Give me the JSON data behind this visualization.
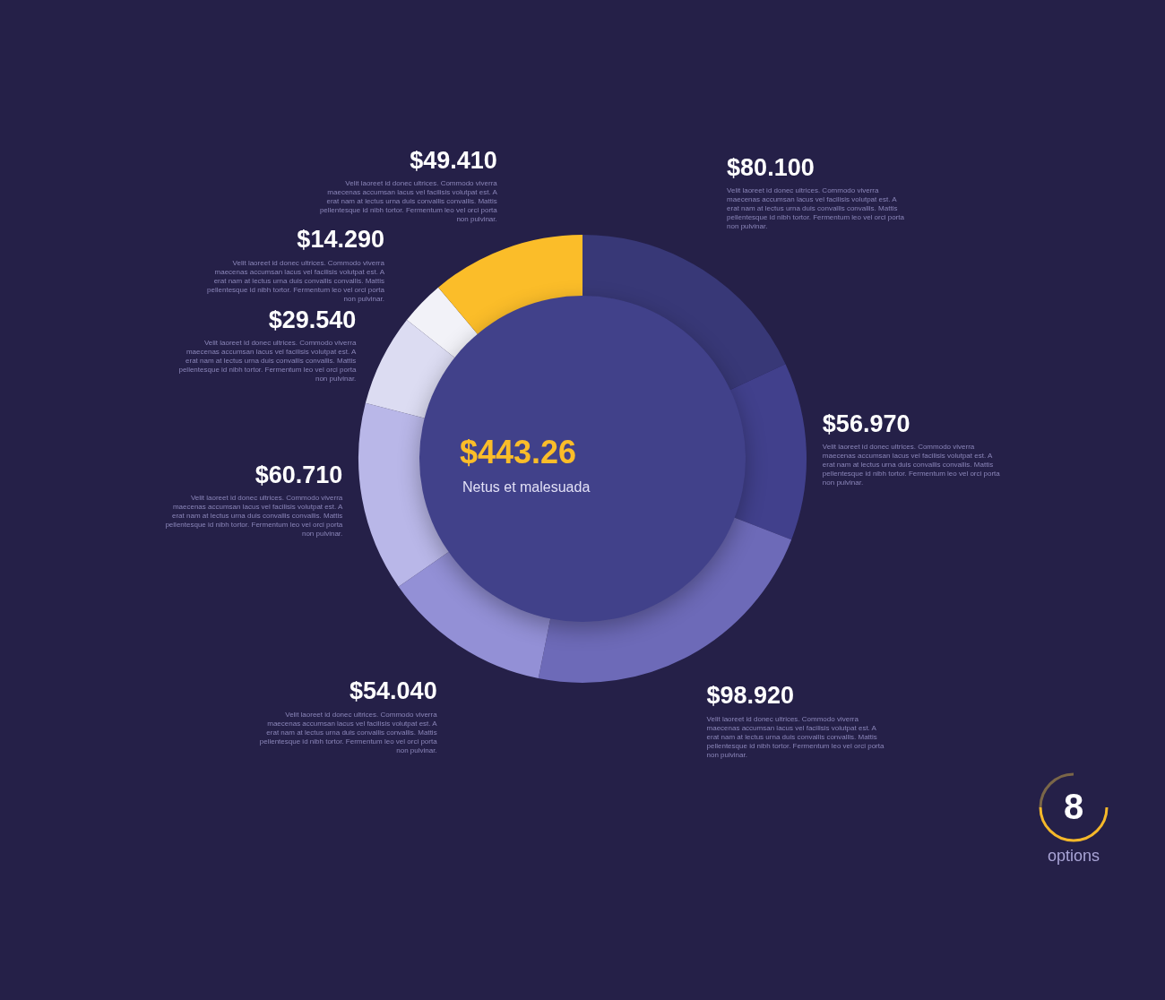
{
  "chart_data": {
    "type": "donut",
    "categories": [
      "Velit laoreet id donec ultrices. Commodo viverra maecenas accumsan lacus vel facilisis volutpat est. A erat nam at lectus urna duis convallis convallis. Mattis pellentesque id nibh tortor. Fermentum leo vel orci porta non pulvinar.",
      "Velit laoreet id donec ultrices. Commodo viverra maecenas accumsan lacus vel facilisis volutpat est. A erat nam at lectus urna duis convallis convallis. Mattis pellentesque id nibh tortor. Fermentum leo vel orci porta non pulvinar.",
      "Velit laoreet id donec ultrices. Commodo viverra maecenas accumsan lacus vel facilisis volutpat est. A erat nam at lectus urna duis convallis convallis. Mattis pellentesque id nibh tortor. Fermentum leo vel orci porta non pulvinar.",
      "Velit laoreet id donec ultrices. Commodo viverra maecenas accumsan lacus vel facilisis volutpat est. A erat nam at lectus urna duis convallis convallis. Mattis pellentesque id nibh tortor. Fermentum leo vel orci porta non pulvinar.",
      "Velit laoreet id donec ultrices. Commodo viverra maecenas accumsan lacus vel facilisis volutpat est. A erat nam at lectus urna duis convallis convallis. Mattis pellentesque id nibh tortor. Fermentum leo vel orci porta non pulvinar.",
      "Velit laoreet id donec ultrices. Commodo viverra maecenas accumsan lacus vel facilisis volutpat est. A erat nam at lectus urna duis convallis convallis. Mattis pellentesque id nibh tortor. Fermentum leo vel orci porta non pulvinar.",
      "Velit laoreet id donec ultrices. Commodo viverra maecenas accumsan lacus vel facilisis volutpat est. A erat nam at lectus urna duis convallis convallis. Mattis pellentesque id nibh tortor. Fermentum leo vel orci porta non pulvinar.",
      "Velit laoreet id donec ultrices. Commodo viverra maecenas accumsan lacus vel facilisis volutpat est. A erat nam at lectus urna duis convallis convallis. Mattis pellentesque id nibh tortor. Fermentum leo vel orci porta non pulvinar."
    ],
    "values": [
      80.1,
      56.97,
      98.92,
      54.04,
      60.71,
      29.54,
      14.29,
      49.41
    ],
    "value_labels": [
      "$80.100",
      "$56.970",
      "$98.920",
      "$54.040",
      "$60.710",
      "$29.540",
      "$14.290",
      "$49.410"
    ],
    "colors": [
      "#383877",
      "#41408c",
      "#6d6ab8",
      "#9390d6",
      "#b9b7e8",
      "#dcdcf2",
      "#f2f2f8",
      "#fbbd29"
    ],
    "legend": false,
    "annotations": [
      "$443.26",
      "Netus et malesuada",
      "8",
      "options"
    ]
  }
}
